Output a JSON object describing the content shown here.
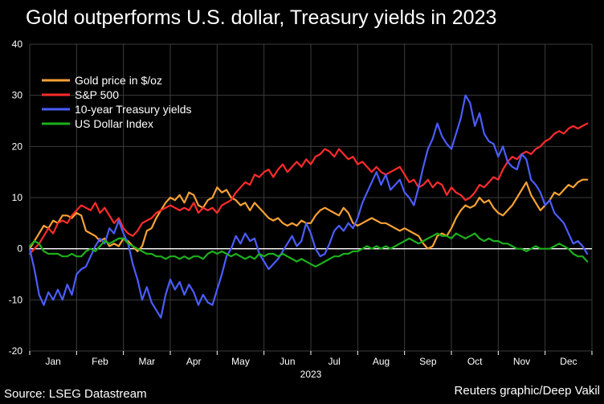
{
  "title": "Gold outperforms U.S. dollar, Treasury yields in 2023",
  "source": "Source: LSEG Datastream",
  "credit": "Reuters graphic/Deep Vakil",
  "chart_data": {
    "type": "line",
    "title": "Gold outperforms U.S. dollar, Treasury yields in 2023",
    "xlabel": "2023",
    "ylabel": "",
    "ylim": [
      -20,
      40
    ],
    "yticks": [
      -20,
      -10,
      0,
      10,
      20,
      30,
      40
    ],
    "xlim": [
      0,
      12
    ],
    "months": [
      "Jan",
      "Feb",
      "Mar",
      "Apr",
      "May",
      "Jun",
      "Jul",
      "Aug",
      "Sep",
      "Oct",
      "Nov",
      "Dec"
    ],
    "year_label": "2023",
    "grid": true,
    "legend_position": "top-left",
    "baseline": 0,
    "series": [
      {
        "name": "Gold price in $/oz",
        "color": "#f7a234",
        "x": [
          0.0,
          0.1,
          0.2,
          0.3,
          0.4,
          0.5,
          0.6,
          0.7,
          0.8,
          0.9,
          1.0,
          1.1,
          1.2,
          1.3,
          1.4,
          1.5,
          1.6,
          1.7,
          1.8,
          1.9,
          2.0,
          2.1,
          2.2,
          2.3,
          2.4,
          2.5,
          2.6,
          2.7,
          2.8,
          2.9,
          3.0,
          3.1,
          3.2,
          3.3,
          3.4,
          3.5,
          3.6,
          3.7,
          3.8,
          3.9,
          4.0,
          4.1,
          4.2,
          4.3,
          4.4,
          4.5,
          4.6,
          4.7,
          4.8,
          4.9,
          5.0,
          5.1,
          5.2,
          5.3,
          5.4,
          5.5,
          5.6,
          5.7,
          5.8,
          5.9,
          6.0,
          6.1,
          6.2,
          6.3,
          6.4,
          6.5,
          6.6,
          6.7,
          6.8,
          6.9,
          7.0,
          7.1,
          7.2,
          7.3,
          7.4,
          7.5,
          7.6,
          7.7,
          7.8,
          7.9,
          8.0,
          8.1,
          8.2,
          8.3,
          8.4,
          8.5,
          8.6,
          8.7,
          8.8,
          8.9,
          9.0,
          9.1,
          9.2,
          9.3,
          9.4,
          9.5,
          9.6,
          9.7,
          9.8,
          9.9,
          10.0,
          10.1,
          10.2,
          10.3,
          10.4,
          10.5,
          10.6,
          10.7,
          10.8,
          10.9,
          11.0,
          11.1,
          11.2,
          11.3,
          11.4,
          11.5,
          11.6,
          11.7,
          11.8,
          11.9
        ],
        "values": [
          0.0,
          1.5,
          3.0,
          4.5,
          4.0,
          5.5,
          5.0,
          6.5,
          6.5,
          6.0,
          7.0,
          6.5,
          3.5,
          3.0,
          2.5,
          1.5,
          2.0,
          0.5,
          1.0,
          0.5,
          2.0,
          1.5,
          0.5,
          -0.5,
          0.5,
          3.5,
          4.0,
          6.0,
          7.5,
          9.0,
          10.0,
          9.5,
          10.5,
          9.0,
          11.0,
          10.5,
          8.5,
          8.0,
          9.5,
          10.0,
          12.0,
          11.0,
          11.5,
          10.0,
          9.5,
          8.5,
          9.0,
          7.5,
          9.0,
          8.0,
          7.0,
          6.0,
          5.5,
          6.0,
          5.0,
          4.5,
          5.0,
          4.5,
          5.5,
          5.0,
          5.0,
          6.5,
          7.5,
          8.0,
          7.5,
          7.0,
          6.5,
          8.0,
          7.0,
          5.0,
          4.5,
          5.0,
          5.5,
          6.0,
          5.5,
          5.0,
          5.0,
          4.5,
          4.0,
          3.5,
          4.0,
          3.5,
          3.0,
          2.5,
          1.0,
          0.0,
          0.5,
          2.5,
          3.0,
          2.5,
          4.0,
          6.0,
          7.5,
          8.5,
          8.0,
          8.5,
          10.0,
          9.0,
          9.5,
          8.0,
          7.0,
          6.5,
          7.5,
          8.5,
          10.0,
          11.5,
          13.0,
          10.5,
          9.0,
          7.5,
          8.5,
          9.5,
          11.0,
          10.5,
          11.5,
          12.5,
          12.0,
          13.0,
          13.5,
          13.5
        ]
      },
      {
        "name": "S&P 500",
        "color": "#ff2b2b",
        "x": [
          0.0,
          0.1,
          0.2,
          0.3,
          0.4,
          0.5,
          0.6,
          0.7,
          0.8,
          0.9,
          1.0,
          1.1,
          1.2,
          1.3,
          1.4,
          1.5,
          1.6,
          1.7,
          1.8,
          1.9,
          2.0,
          2.1,
          2.2,
          2.3,
          2.4,
          2.5,
          2.6,
          2.7,
          2.8,
          2.9,
          3.0,
          3.1,
          3.2,
          3.3,
          3.4,
          3.5,
          3.6,
          3.7,
          3.8,
          3.9,
          4.0,
          4.1,
          4.2,
          4.3,
          4.4,
          4.5,
          4.6,
          4.7,
          4.8,
          4.9,
          5.0,
          5.1,
          5.2,
          5.3,
          5.4,
          5.5,
          5.6,
          5.7,
          5.8,
          5.9,
          6.0,
          6.1,
          6.2,
          6.3,
          6.4,
          6.5,
          6.6,
          6.7,
          6.8,
          6.9,
          7.0,
          7.1,
          7.2,
          7.3,
          7.4,
          7.5,
          7.6,
          7.7,
          7.8,
          7.9,
          8.0,
          8.1,
          8.2,
          8.3,
          8.4,
          8.5,
          8.6,
          8.7,
          8.8,
          8.9,
          9.0,
          9.1,
          9.2,
          9.3,
          9.4,
          9.5,
          9.6,
          9.7,
          9.8,
          9.9,
          10.0,
          10.1,
          10.2,
          10.3,
          10.4,
          10.5,
          10.6,
          10.7,
          10.8,
          10.9,
          11.0,
          11.1,
          11.2,
          11.3,
          11.4,
          11.5,
          11.6,
          11.7,
          11.8,
          11.9
        ],
        "values": [
          -1.0,
          0.0,
          1.0,
          2.5,
          4.0,
          3.0,
          5.0,
          5.5,
          5.0,
          6.5,
          7.5,
          8.5,
          8.0,
          7.5,
          9.0,
          7.0,
          8.0,
          6.5,
          5.0,
          6.0,
          4.0,
          3.0,
          2.5,
          3.5,
          5.0,
          5.5,
          6.0,
          7.0,
          7.5,
          8.0,
          8.5,
          8.0,
          7.5,
          8.0,
          7.5,
          9.0,
          7.0,
          8.0,
          7.5,
          8.0,
          7.0,
          8.5,
          9.0,
          9.5,
          11.0,
          12.0,
          13.0,
          12.5,
          14.5,
          14.0,
          15.0,
          15.5,
          14.0,
          15.5,
          16.5,
          15.0,
          16.0,
          17.0,
          16.0,
          17.5,
          16.5,
          18.0,
          18.5,
          19.5,
          19.0,
          18.0,
          19.5,
          18.5,
          17.5,
          18.0,
          16.5,
          17.0,
          16.0,
          15.0,
          16.0,
          15.0,
          14.5,
          15.0,
          15.5,
          16.0,
          14.5,
          13.0,
          13.5,
          12.0,
          12.5,
          13.5,
          12.0,
          13.0,
          12.5,
          10.5,
          12.0,
          11.0,
          10.5,
          9.5,
          10.0,
          11.0,
          12.5,
          12.0,
          13.0,
          14.0,
          13.5,
          15.5,
          17.0,
          18.0,
          17.5,
          18.5,
          19.0,
          18.5,
          19.5,
          20.0,
          21.0,
          21.5,
          22.5,
          23.0,
          22.5,
          23.5,
          24.0,
          23.5,
          24.0,
          24.5
        ]
      },
      {
        "name": "10-year Treasury yields",
        "color": "#4b5dff",
        "x": [
          0.0,
          0.1,
          0.2,
          0.3,
          0.4,
          0.5,
          0.6,
          0.7,
          0.8,
          0.9,
          1.0,
          1.1,
          1.2,
          1.3,
          1.4,
          1.5,
          1.6,
          1.7,
          1.8,
          1.9,
          2.0,
          2.1,
          2.2,
          2.3,
          2.4,
          2.5,
          2.6,
          2.7,
          2.8,
          2.9,
          3.0,
          3.1,
          3.2,
          3.3,
          3.4,
          3.5,
          3.6,
          3.7,
          3.8,
          3.9,
          4.0,
          4.1,
          4.2,
          4.3,
          4.4,
          4.5,
          4.6,
          4.7,
          4.8,
          4.9,
          5.0,
          5.1,
          5.2,
          5.3,
          5.4,
          5.5,
          5.6,
          5.7,
          5.8,
          5.9,
          6.0,
          6.1,
          6.2,
          6.3,
          6.4,
          6.5,
          6.6,
          6.7,
          6.8,
          6.9,
          7.0,
          7.1,
          7.2,
          7.3,
          7.4,
          7.5,
          7.6,
          7.7,
          7.8,
          7.9,
          8.0,
          8.1,
          8.2,
          8.3,
          8.4,
          8.5,
          8.6,
          8.7,
          8.8,
          8.9,
          9.0,
          9.1,
          9.2,
          9.3,
          9.4,
          9.5,
          9.6,
          9.7,
          9.8,
          9.9,
          10.0,
          10.1,
          10.2,
          10.3,
          10.4,
          10.5,
          10.6,
          10.7,
          10.8,
          10.9,
          11.0,
          11.1,
          11.2,
          11.3,
          11.4,
          11.5,
          11.6,
          11.7,
          11.8,
          11.9
        ],
        "values": [
          0.0,
          -4.0,
          -9.0,
          -11.0,
          -8.5,
          -10.0,
          -8.0,
          -10.0,
          -7.0,
          -9.0,
          -5.0,
          -4.0,
          -3.5,
          -1.5,
          0.5,
          2.0,
          1.0,
          4.0,
          3.0,
          5.5,
          3.0,
          1.0,
          -3.0,
          -6.0,
          -10.0,
          -7.5,
          -10.5,
          -12.0,
          -13.5,
          -9.0,
          -6.0,
          -8.0,
          -6.5,
          -9.0,
          -7.0,
          -8.5,
          -11.0,
          -9.0,
          -10.5,
          -11.0,
          -8.0,
          -5.0,
          -1.5,
          0.0,
          2.5,
          1.0,
          3.0,
          1.5,
          2.0,
          -1.0,
          -2.5,
          -4.0,
          -3.0,
          -2.0,
          -0.5,
          1.0,
          2.5,
          0.5,
          1.5,
          5.0,
          3.0,
          0.0,
          -1.5,
          -1.0,
          1.0,
          3.5,
          4.5,
          3.5,
          5.0,
          4.0,
          6.0,
          9.0,
          11.0,
          13.0,
          15.0,
          12.5,
          14.5,
          11.5,
          12.5,
          13.5,
          11.0,
          10.0,
          8.5,
          12.0,
          16.0,
          19.5,
          21.5,
          24.5,
          22.0,
          20.5,
          19.5,
          22.5,
          25.5,
          30.0,
          28.5,
          24.0,
          26.5,
          22.5,
          21.0,
          20.5,
          18.0,
          20.0,
          17.0,
          16.0,
          15.5,
          18.5,
          17.5,
          13.5,
          12.5,
          11.0,
          8.5,
          9.5,
          7.0,
          6.0,
          5.0,
          3.0,
          1.0,
          1.5,
          0.5,
          -1.0
        ]
      },
      {
        "name": "US Dollar Index",
        "color": "#1db01d",
        "x": [
          0.0,
          0.1,
          0.2,
          0.3,
          0.4,
          0.5,
          0.6,
          0.7,
          0.8,
          0.9,
          1.0,
          1.1,
          1.2,
          1.3,
          1.4,
          1.5,
          1.6,
          1.7,
          1.8,
          1.9,
          2.0,
          2.1,
          2.2,
          2.3,
          2.4,
          2.5,
          2.6,
          2.7,
          2.8,
          2.9,
          3.0,
          3.1,
          3.2,
          3.3,
          3.4,
          3.5,
          3.6,
          3.7,
          3.8,
          3.9,
          4.0,
          4.1,
          4.2,
          4.3,
          4.4,
          4.5,
          4.6,
          4.7,
          4.8,
          4.9,
          5.0,
          5.1,
          5.2,
          5.3,
          5.4,
          5.5,
          5.6,
          5.7,
          5.8,
          5.9,
          6.0,
          6.1,
          6.2,
          6.3,
          6.4,
          6.5,
          6.6,
          6.7,
          6.8,
          6.9,
          7.0,
          7.1,
          7.2,
          7.3,
          7.4,
          7.5,
          7.6,
          7.7,
          7.8,
          7.9,
          8.0,
          8.1,
          8.2,
          8.3,
          8.4,
          8.5,
          8.6,
          8.7,
          8.8,
          8.9,
          9.0,
          9.1,
          9.2,
          9.3,
          9.4,
          9.5,
          9.6,
          9.7,
          9.8,
          9.9,
          10.0,
          10.1,
          10.2,
          10.3,
          10.4,
          10.5,
          10.6,
          10.7,
          10.8,
          10.9,
          11.0,
          11.1,
          11.2,
          11.3,
          11.4,
          11.5,
          11.6,
          11.7,
          11.8,
          11.9
        ],
        "values": [
          0.5,
          1.5,
          1.0,
          -0.5,
          -1.0,
          -1.0,
          -1.0,
          -1.5,
          -1.5,
          -1.0,
          -1.5,
          -1.5,
          -0.5,
          0.0,
          -0.5,
          0.5,
          1.5,
          1.0,
          1.5,
          2.0,
          2.0,
          1.0,
          0.5,
          0.0,
          -0.5,
          -1.0,
          -1.0,
          -1.5,
          -1.5,
          -2.0,
          -1.5,
          -1.5,
          -2.0,
          -1.5,
          -2.0,
          -1.5,
          -1.5,
          -2.0,
          -1.0,
          -0.5,
          -1.0,
          -0.5,
          -1.0,
          -1.5,
          -1.0,
          -1.5,
          -2.0,
          -1.5,
          -2.0,
          -1.0,
          -1.5,
          -1.0,
          -1.0,
          -1.5,
          -1.0,
          -1.5,
          -2.0,
          -2.5,
          -2.0,
          -2.5,
          -3.0,
          -3.5,
          -3.0,
          -2.5,
          -2.0,
          -1.5,
          -1.5,
          -1.0,
          -1.0,
          -0.5,
          -0.5,
          0.0,
          0.5,
          0.0,
          0.5,
          0.0,
          0.5,
          0.0,
          0.5,
          1.0,
          1.5,
          2.0,
          1.5,
          1.0,
          1.5,
          2.0,
          2.5,
          3.0,
          2.5,
          2.5,
          2.0,
          3.0,
          2.5,
          2.0,
          2.5,
          3.0,
          2.0,
          1.5,
          2.0,
          1.5,
          1.5,
          1.0,
          1.0,
          0.5,
          0.0,
          0.0,
          -0.5,
          0.0,
          0.5,
          0.0,
          0.0,
          0.0,
          0.5,
          1.0,
          0.5,
          0.0,
          -1.0,
          -1.5,
          -1.5,
          -2.5
        ]
      }
    ]
  }
}
